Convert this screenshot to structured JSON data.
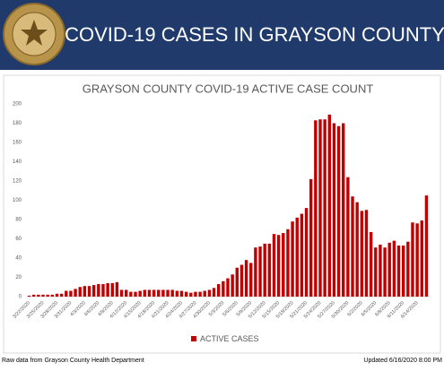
{
  "header": {
    "title": "COVID-19 CASES IN GRAYSON COUNTY"
  },
  "chart_data": {
    "type": "bar",
    "title": "GRAYSON COUNTY COVID-19 ACTIVE CASE COUNT",
    "categories": [
      "3/22/2020",
      null,
      null,
      "3/25/2020",
      null,
      null,
      "3/28/2020",
      null,
      null,
      "3/31/2020",
      null,
      null,
      "4/3/2020",
      null,
      null,
      "4/6/2020",
      null,
      null,
      "4/9/2020",
      null,
      null,
      "4/12/2020",
      null,
      null,
      "4/15/2020",
      null,
      null,
      "4/18/2020",
      null,
      null,
      "4/21/2020",
      null,
      null,
      "4/24/2020",
      null,
      null,
      "4/27/2020",
      null,
      null,
      "4/30/2020",
      null,
      null,
      "5/3/2020",
      null,
      null,
      "5/6/2020",
      null,
      null,
      "5/9/2020",
      null,
      null,
      "5/12/2020",
      null,
      null,
      "5/15/2020",
      null,
      null,
      "5/18/2020",
      null,
      null,
      "5/21/2020",
      null,
      null,
      "5/24/2020",
      null,
      null,
      "5/27/2020",
      null,
      null,
      "5/30/2020",
      null,
      null,
      "6/2/2020",
      null,
      null,
      "6/5/2020",
      null,
      null,
      "6/8/2020",
      null,
      null,
      "6/11/2020",
      null,
      null,
      "6/14/2020",
      null,
      null
    ],
    "series": [
      {
        "name": "ACTIVE CASES",
        "color": "#c00000",
        "values": [
          1,
          2,
          2,
          2,
          2,
          2,
          3,
          3,
          6,
          6,
          8,
          10,
          11,
          11,
          12,
          13,
          13,
          14,
          14,
          15,
          7,
          7,
          5,
          5,
          6,
          7,
          7,
          7,
          7,
          7,
          7,
          7,
          6,
          6,
          5,
          4,
          5,
          5,
          6,
          7,
          9,
          13,
          16,
          19,
          23,
          30,
          33,
          38,
          35,
          51,
          52,
          55,
          55,
          65,
          64,
          66,
          70,
          78,
          82,
          86,
          92,
          122,
          183,
          184,
          184,
          189,
          180,
          177,
          180,
          124,
          104,
          98,
          89,
          90,
          67,
          51,
          54,
          51,
          56,
          58,
          53,
          53,
          57,
          77,
          76,
          79,
          105
        ]
      }
    ],
    "ylim": [
      0,
      200
    ],
    "yticks": [
      0,
      20,
      40,
      60,
      80,
      100,
      120,
      140,
      160,
      180,
      200
    ],
    "grid": false,
    "legend": "bottom"
  },
  "footer": {
    "source": "Raw data from Grayson County Health Department",
    "updated": "Updated 6/16/2020 8:00 PM"
  }
}
